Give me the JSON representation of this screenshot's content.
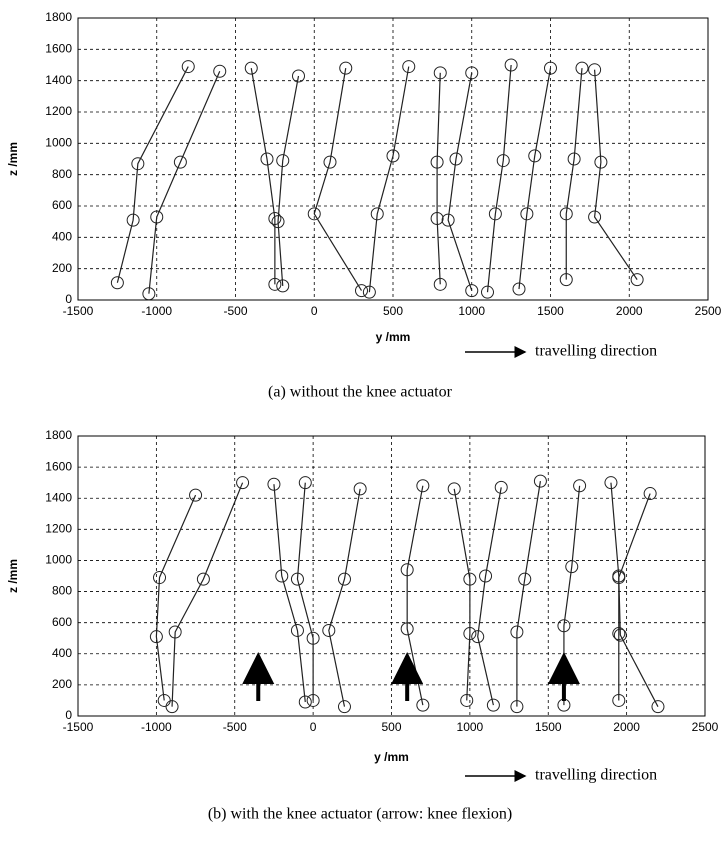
{
  "chart_data": [
    {
      "type": "stick",
      "xlabel": "y /mm",
      "ylabel": "z /mm",
      "direction_label": "travelling direction",
      "caption": "(a) without the knee actuator",
      "xlim": [
        -1500,
        2500
      ],
      "ylim": [
        0,
        1800
      ],
      "xticks": [
        -1500,
        -1000,
        -500,
        0,
        500,
        1000,
        1500,
        2000,
        2500
      ],
      "yticks": [
        0,
        200,
        400,
        600,
        800,
        1000,
        1200,
        1400,
        1600,
        1800
      ],
      "grid": true,
      "color": "#222222",
      "frames": [
        {
          "y": [
            -800,
            -1120,
            -1150,
            -1250
          ],
          "z": [
            1490,
            870,
            510,
            110
          ]
        },
        {
          "y": [
            -600,
            -850,
            -1000,
            -1050
          ],
          "z": [
            1460,
            880,
            530,
            40
          ]
        },
        {
          "y": [
            -400,
            -300,
            -250,
            -250
          ],
          "z": [
            1480,
            900,
            520,
            100
          ]
        },
        {
          "y": [
            -100,
            -200,
            -230,
            -200
          ],
          "z": [
            1430,
            890,
            500,
            90
          ]
        },
        {
          "y": [
            200,
            100,
            0,
            300
          ],
          "z": [
            1480,
            880,
            550,
            60
          ]
        },
        {
          "y": [
            600,
            500,
            400,
            350
          ],
          "z": [
            1490,
            920,
            550,
            50
          ]
        },
        {
          "y": [
            800,
            780,
            780,
            800
          ],
          "z": [
            1450,
            880,
            520,
            100
          ]
        },
        {
          "y": [
            1000,
            900,
            850,
            1000
          ],
          "z": [
            1450,
            900,
            510,
            60
          ]
        },
        {
          "y": [
            1250,
            1200,
            1150,
            1100
          ],
          "z": [
            1500,
            890,
            550,
            50
          ]
        },
        {
          "y": [
            1500,
            1400,
            1350,
            1300
          ],
          "z": [
            1480,
            920,
            550,
            70
          ]
        },
        {
          "y": [
            1700,
            1650,
            1600,
            1600
          ],
          "z": [
            1480,
            900,
            550,
            130
          ]
        },
        {
          "y": [
            1780,
            1820,
            1780,
            2050
          ],
          "z": [
            1470,
            880,
            530,
            130
          ]
        }
      ]
    },
    {
      "type": "stick",
      "xlabel": "y /mm",
      "ylabel": "z /mm",
      "direction_label": "travelling direction",
      "caption": "(b) with the knee actuator (arrow: knee flexion)",
      "xlim": [
        -1500,
        2500
      ],
      "ylim": [
        0,
        1800
      ],
      "xticks": [
        -1500,
        -1000,
        -500,
        0,
        500,
        1000,
        1500,
        2000,
        2500
      ],
      "yticks": [
        0,
        200,
        400,
        600,
        800,
        1000,
        1200,
        1400,
        1600,
        1800
      ],
      "grid": true,
      "color": "#222222",
      "knee_flexion_arrows": [
        -350,
        600,
        1600
      ],
      "frames": [
        {
          "y": [
            -750,
            -980,
            -1000,
            -950
          ],
          "z": [
            1420,
            890,
            510,
            100
          ]
        },
        {
          "y": [
            -450,
            -700,
            -880,
            -900
          ],
          "z": [
            1500,
            880,
            540,
            60
          ]
        },
        {
          "y": [
            -250,
            -200,
            -100,
            -50
          ],
          "z": [
            1490,
            900,
            550,
            90
          ]
        },
        {
          "y": [
            -50,
            -100,
            0,
            0
          ],
          "z": [
            1500,
            880,
            500,
            100
          ]
        },
        {
          "y": [
            300,
            200,
            100,
            200
          ],
          "z": [
            1460,
            880,
            550,
            60
          ]
        },
        {
          "y": [
            700,
            600,
            600,
            700
          ],
          "z": [
            1480,
            940,
            560,
            70
          ]
        },
        {
          "y": [
            900,
            1000,
            1000,
            980
          ],
          "z": [
            1460,
            880,
            530,
            100
          ]
        },
        {
          "y": [
            1200,
            1100,
            1050,
            1150
          ],
          "z": [
            1470,
            900,
            510,
            70
          ]
        },
        {
          "y": [
            1450,
            1350,
            1300,
            1300
          ],
          "z": [
            1510,
            880,
            540,
            60
          ]
        },
        {
          "y": [
            1700,
            1650,
            1600,
            1600
          ],
          "z": [
            1480,
            960,
            580,
            70
          ]
        },
        {
          "y": [
            1900,
            1950,
            1950,
            1950
          ],
          "z": [
            1500,
            900,
            530,
            100
          ]
        },
        {
          "y": [
            2150,
            1950,
            1960,
            2200
          ],
          "z": [
            1430,
            890,
            520,
            60
          ]
        }
      ]
    }
  ]
}
